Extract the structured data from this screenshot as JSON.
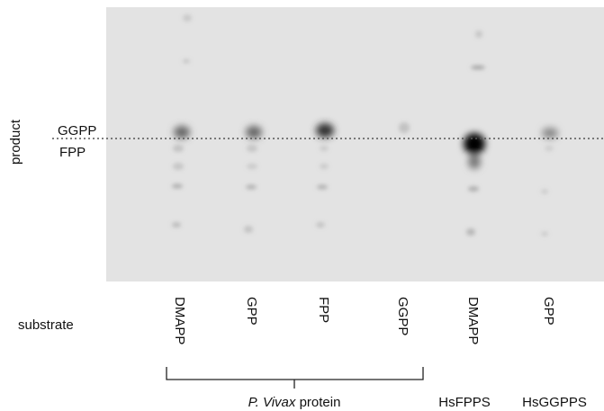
{
  "axis_label": "product",
  "product_labels": {
    "upper": "GGPP",
    "lower": "FPP"
  },
  "row_label": "substrate",
  "lanes": [
    "DMAPP",
    "GPP",
    "FPP",
    "GGPP",
    "DMAPP",
    "GPP"
  ],
  "groups": {
    "pvivax": {
      "species": "P. Vivax",
      "suffix": "protein"
    },
    "hsfpps": "HsFPPS",
    "hsggpps": "HsGGPPS"
  }
}
